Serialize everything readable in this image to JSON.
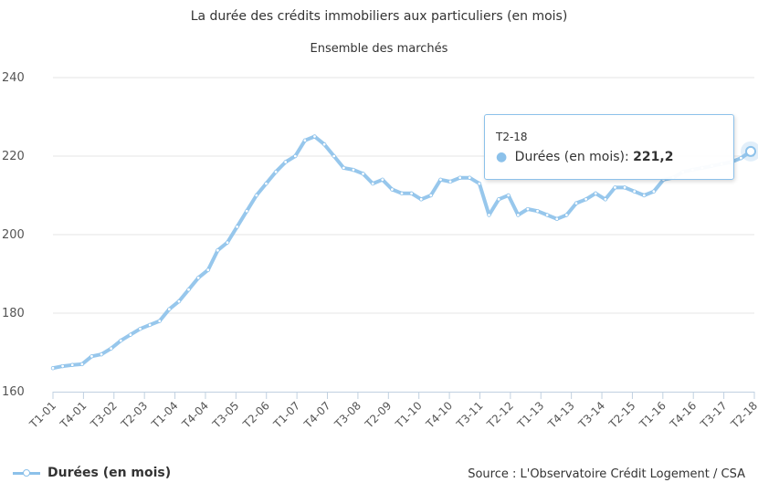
{
  "chart_data": {
    "type": "line",
    "title": "La durée des crédits immobiliers aux particuliers (en mois)",
    "subtitle": "Ensemble des marchés",
    "ylim": [
      160,
      240
    ],
    "yticks": [
      160,
      180,
      200,
      220,
      240
    ],
    "x_tick_labels": [
      "T1-01",
      "T4-01",
      "T3-02",
      "T2-03",
      "T1-04",
      "T4-04",
      "T3-05",
      "T2-06",
      "T1-07",
      "T4-07",
      "T3-08",
      "T2-09",
      "T1-10",
      "T4-10",
      "T3-11",
      "T2-12",
      "T1-13",
      "T4-13",
      "T3-14",
      "T2-15",
      "T1-16",
      "T4-16",
      "T3-17",
      "T2-18"
    ],
    "grid": true,
    "legend_position": "bottom-left",
    "series": [
      {
        "name": "Durées (en mois)",
        "color": "#8cc1ea",
        "values": [
          166,
          166.5,
          166.8,
          167,
          169,
          169.5,
          171,
          173,
          174.5,
          176,
          177,
          178,
          181,
          183,
          186,
          189,
          191,
          196,
          198,
          202,
          206,
          210,
          213,
          216,
          218.5,
          220,
          224,
          225,
          223,
          220,
          217,
          216.5,
          215.5,
          213,
          214,
          211.5,
          210.5,
          210.5,
          209,
          210,
          214,
          213.5,
          214.5,
          214.5,
          213,
          205,
          209,
          210,
          205,
          206.5,
          206,
          205,
          204,
          205,
          208,
          209,
          210.5,
          209,
          212,
          212,
          211,
          210,
          211,
          214,
          214.5,
          216,
          216.5,
          217,
          217.5,
          218,
          218.5,
          219.5,
          221.2
        ]
      }
    ]
  },
  "tooltip": {
    "header": "T2-18",
    "series_label": "Durées (en mois):",
    "value": "221,2"
  },
  "source": "Source : L'Observatoire Crédit Logement / CSA"
}
